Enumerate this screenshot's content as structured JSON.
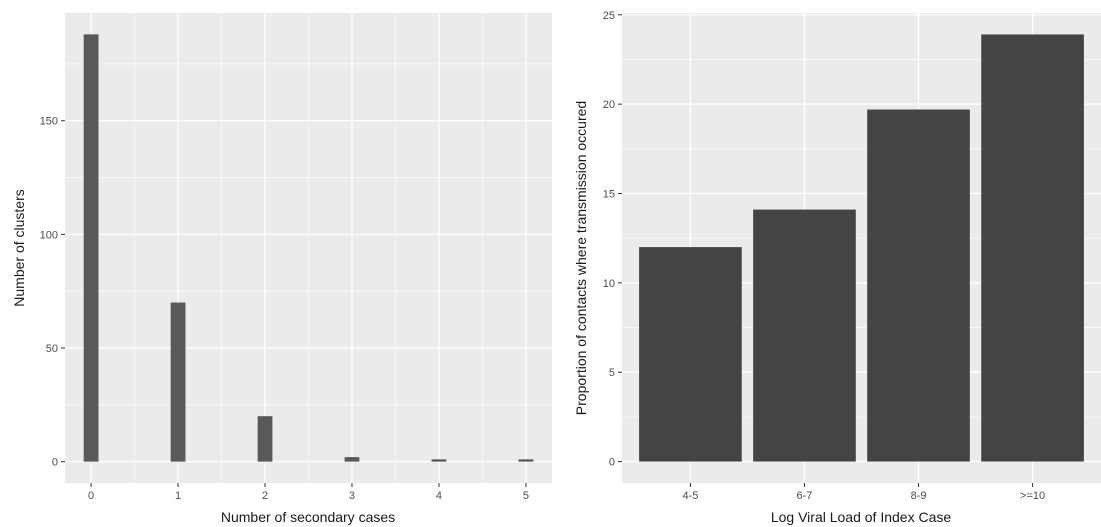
{
  "chart_data": [
    {
      "type": "bar",
      "xlabel": "Number of secondary cases",
      "ylabel": "Number of clusters",
      "x": [
        0,
        1,
        2,
        3,
        4,
        5
      ],
      "values": [
        188,
        70,
        20,
        2,
        1,
        1
      ],
      "xlim": [
        -0.3,
        5.3
      ],
      "ylim": [
        -9.4,
        197.4
      ],
      "xticks": [
        "0",
        "1",
        "2",
        "3",
        "4",
        "5"
      ],
      "yticks": [
        "0",
        "50",
        "100",
        "150"
      ],
      "grid": true,
      "bar_color": "#595959"
    },
    {
      "type": "bar",
      "xlabel": "Log Viral Load of Index Case",
      "ylabel": "Proportion of contacts where transmission occured",
      "categories": [
        "4-5",
        "6-7",
        "8-9",
        ">=10"
      ],
      "values": [
        12.0,
        14.1,
        19.7,
        23.9
      ],
      "ylim": [
        -1.2,
        25.1
      ],
      "yticks": [
        "0",
        "5",
        "10",
        "15",
        "20",
        "25"
      ],
      "grid": true,
      "bar_color": "#444444"
    }
  ],
  "colors": {
    "panel_background": "#ebebeb",
    "grid_major": "#ffffff",
    "text": "#4d4d4d"
  }
}
